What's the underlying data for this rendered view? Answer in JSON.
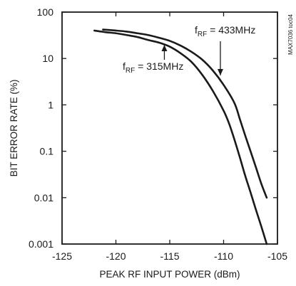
{
  "chart_data": {
    "type": "line",
    "title": "",
    "xlabel": "PEAK RF INPUT POWER (dBm)",
    "ylabel": "BIT ERROR RATE (%)",
    "xlim": [
      -125,
      -105
    ],
    "ylim": [
      0.001,
      100
    ],
    "yscale": "log",
    "grid": false,
    "x_ticks": [
      -125,
      -120,
      -115,
      -110,
      -105
    ],
    "x_tick_labels": [
      "-125",
      "-120",
      "-115",
      "-110",
      "-105"
    ],
    "y_ticks": [
      100,
      10,
      1,
      0.1,
      0.01,
      0.001
    ],
    "y_tick_labels": [
      "100",
      "10",
      "1",
      "0.1",
      "0.01",
      "0.001"
    ],
    "series": [
      {
        "name": "fRF = 315MHz",
        "x": [
          -122,
          -121,
          -120,
          -119,
          -118,
          -117,
          -116,
          -115,
          -114,
          -113,
          -112,
          -111,
          -110,
          -109.5,
          -109,
          -108.5,
          -108,
          -107.5,
          -107,
          -106.5,
          -106
        ],
        "y": [
          40,
          37,
          35,
          32,
          29,
          25,
          22,
          18,
          13,
          8.5,
          4.5,
          2.0,
          0.75,
          0.4,
          0.18,
          0.075,
          0.03,
          0.013,
          0.0055,
          0.0024,
          0.001
        ]
      },
      {
        "name": "fRF = 433MHz",
        "x": [
          -121.2,
          -120,
          -119,
          -118,
          -117,
          -116,
          -115,
          -114,
          -113,
          -112,
          -111,
          -110,
          -109,
          -108.5,
          -108,
          -107.5,
          -107,
          -106.5,
          -106
        ],
        "y": [
          42,
          40,
          38,
          35,
          32,
          28,
          24,
          19,
          14,
          9.5,
          5.5,
          2.7,
          1.1,
          0.5,
          0.22,
          0.1,
          0.045,
          0.02,
          0.01
        ]
      }
    ],
    "annotations": [
      {
        "text": "f",
        "subscript": "RF",
        "suffix": " = 315MHz",
        "target_series": "fRF = 315MHz",
        "arrow_x": -115.5
      },
      {
        "text": "f",
        "subscript": "RF",
        "suffix": " = 433MHz",
        "target_series": "fRF = 433MHz",
        "arrow_x": -110.3
      }
    ],
    "side_label": "MAX7036 toc04"
  }
}
